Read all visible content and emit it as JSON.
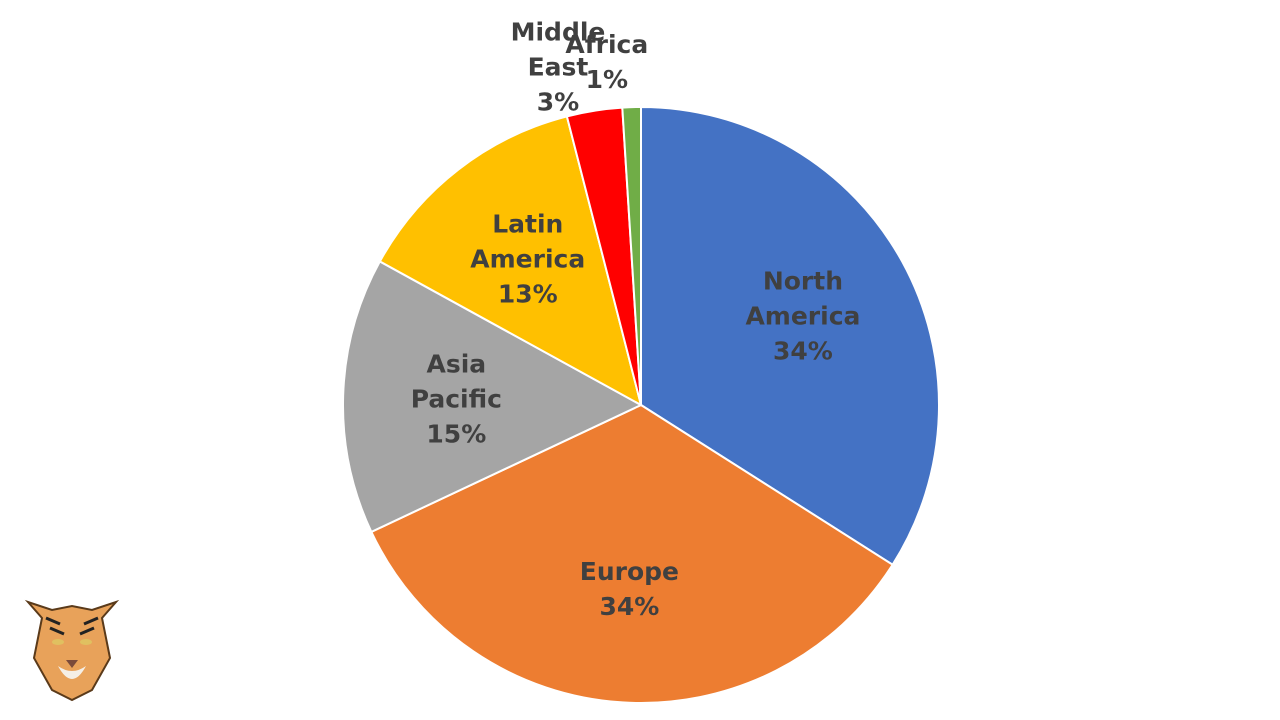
{
  "chart_data": {
    "type": "pie",
    "categories": [
      "North America",
      "Europe",
      "Asia Pacific",
      "Latin America",
      "Middle East",
      "Africa"
    ],
    "values": [
      34,
      34,
      15,
      13,
      3,
      1
    ],
    "value_labels": [
      "34%",
      "34%",
      "15%",
      "13%",
      "3%",
      "1%"
    ],
    "colors": [
      "#4472c4",
      "#ed7d31",
      "#a5a5a5",
      "#ffc000",
      "#ff0000",
      "#70ad47"
    ]
  }
}
